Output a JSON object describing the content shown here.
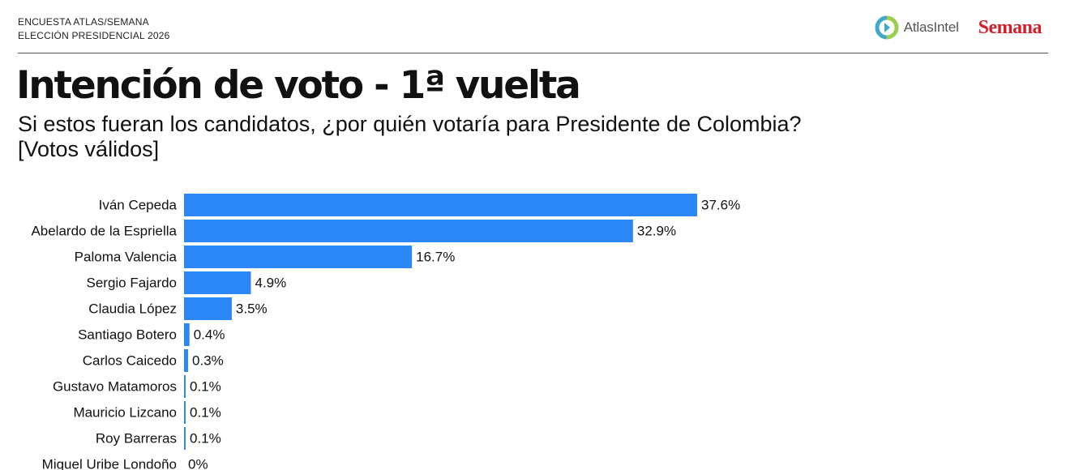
{
  "header": {
    "line1": "ENCUESTA ATLAS/SEMANA",
    "line2": "ELECCIÓN PRESIDENCIAL 2026"
  },
  "logos": {
    "atlas": "AtlasIntel",
    "semana": "Semana"
  },
  "title": "Intención de voto - 1ª vuelta",
  "subtitle": {
    "line1": "Si estos fueran los candidatos, ¿por quién votaría para Presidente de Colombia?",
    "line2": "[Votos válidos]"
  },
  "colors": {
    "bar": "#2a87f5",
    "semana": "#d0202e",
    "atlas_green": "#9bcf4f",
    "atlas_teal": "#3fa9c9"
  },
  "chart_data": {
    "type": "bar",
    "orientation": "horizontal",
    "categories": [
      "Iván Cepeda",
      "Abelardo de la Espriella",
      "Paloma Valencia",
      "Sergio Fajardo",
      "Claudia López",
      "Santiago Botero",
      "Carlos Caicedo",
      "Gustavo Matamoros",
      "Mauricio Lizcano",
      "Roy Barreras",
      "Miguel Uribe Londoño"
    ],
    "values": [
      37.6,
      32.9,
      16.7,
      4.9,
      3.5,
      0.4,
      0.3,
      0.1,
      0.1,
      0.1,
      0
    ],
    "value_labels": [
      "37.6%",
      "32.9%",
      "16.7%",
      "4.9%",
      "3.5%",
      "0.4%",
      "0.3%",
      "0.1%",
      "0.1%",
      "0.1%",
      "0%"
    ],
    "xlim": [
      0,
      37.6
    ],
    "grid": false,
    "legend": "none"
  }
}
